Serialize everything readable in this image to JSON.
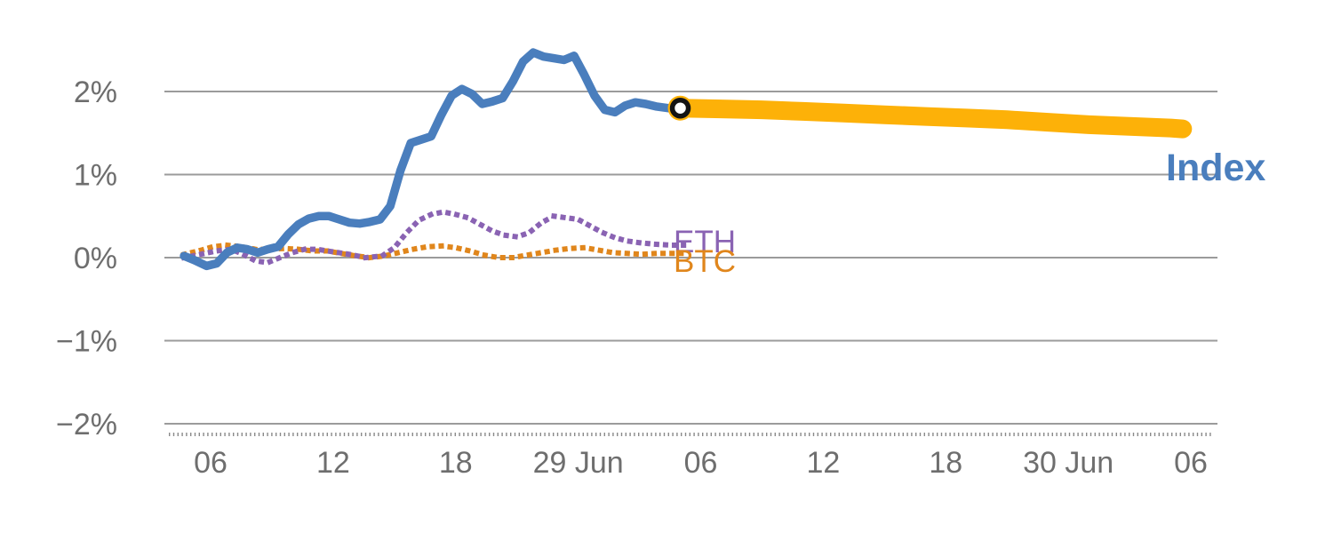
{
  "labels": {
    "index": "Index",
    "eth": "ETH",
    "btc": "BTC"
  },
  "colors": {
    "index": "#4a7ebd",
    "forecast": "#fdb108",
    "eth": "#8a63b3",
    "btc": "#e0861c",
    "axis_text": "#6e6e6e",
    "grid": "#9b9b9b",
    "minor_axis": "#8a8a8a",
    "marker_stroke": "#141414",
    "marker_fill": "#ffffff"
  },
  "chart_data": {
    "type": "line",
    "title": "",
    "xlabel": "",
    "ylabel": "",
    "grid": true,
    "legend_position": "inline-right",
    "ylim": [
      -2,
      2
    ],
    "xlim_hours": [
      3.8,
      55.2
    ],
    "y_ticks": [
      {
        "value": 2,
        "label": "2%"
      },
      {
        "value": 1,
        "label": "1%"
      },
      {
        "value": 0,
        "label": "0%"
      },
      {
        "value": -1,
        "label": "−1%"
      },
      {
        "value": -2,
        "label": "−2%"
      }
    ],
    "x_ticks": [
      {
        "t": 6,
        "label": "06"
      },
      {
        "t": 12,
        "label": "12"
      },
      {
        "t": 18,
        "label": "18"
      },
      {
        "t": 24,
        "label": "29 Jun"
      },
      {
        "t": 30,
        "label": "06"
      },
      {
        "t": 36,
        "label": "12"
      },
      {
        "t": 42,
        "label": "18"
      },
      {
        "t": 48,
        "label": "30 Jun"
      },
      {
        "t": 54,
        "label": "06"
      }
    ],
    "series": [
      {
        "name": "Index",
        "color": "#4a7ebd",
        "style": "solid",
        "width": 9.5,
        "points": [
          [
            4.7,
            0.02
          ],
          [
            5.2,
            -0.03
          ],
          [
            5.8,
            -0.1
          ],
          [
            6.3,
            -0.07
          ],
          [
            6.8,
            0.06
          ],
          [
            7.3,
            0.12
          ],
          [
            7.8,
            0.1
          ],
          [
            8.3,
            0.06
          ],
          [
            8.8,
            0.1
          ],
          [
            9.3,
            0.13
          ],
          [
            9.8,
            0.28
          ],
          [
            10.3,
            0.4
          ],
          [
            10.8,
            0.47
          ],
          [
            11.3,
            0.5
          ],
          [
            11.8,
            0.5
          ],
          [
            12.3,
            0.46
          ],
          [
            12.8,
            0.42
          ],
          [
            13.3,
            0.41
          ],
          [
            13.8,
            0.43
          ],
          [
            14.3,
            0.46
          ],
          [
            14.8,
            0.62
          ],
          [
            15.3,
            1.05
          ],
          [
            15.8,
            1.38
          ],
          [
            16.3,
            1.42
          ],
          [
            16.8,
            1.46
          ],
          [
            17.3,
            1.72
          ],
          [
            17.8,
            1.95
          ],
          [
            18.3,
            2.03
          ],
          [
            18.8,
            1.97
          ],
          [
            19.3,
            1.85
          ],
          [
            19.8,
            1.88
          ],
          [
            20.3,
            1.92
          ],
          [
            20.8,
            2.12
          ],
          [
            21.3,
            2.36
          ],
          [
            21.8,
            2.47
          ],
          [
            22.3,
            2.42
          ],
          [
            22.8,
            2.4
          ],
          [
            23.3,
            2.38
          ],
          [
            23.8,
            2.43
          ],
          [
            24.3,
            2.2
          ],
          [
            24.8,
            1.95
          ],
          [
            25.3,
            1.78
          ],
          [
            25.8,
            1.75
          ],
          [
            26.3,
            1.83
          ],
          [
            26.8,
            1.87
          ],
          [
            27.3,
            1.85
          ],
          [
            27.8,
            1.82
          ],
          [
            28.4,
            1.8
          ],
          [
            29,
            1.8
          ]
        ]
      },
      {
        "name": "Index forecast",
        "color": "#fdb108",
        "style": "solid",
        "width": 21,
        "points": [
          [
            29,
            1.8
          ],
          [
            31,
            1.79
          ],
          [
            33,
            1.78
          ],
          [
            35,
            1.76
          ],
          [
            37,
            1.74
          ],
          [
            39,
            1.72
          ],
          [
            41,
            1.7
          ],
          [
            43,
            1.68
          ],
          [
            45,
            1.66
          ],
          [
            47,
            1.63
          ],
          [
            49,
            1.6
          ],
          [
            51,
            1.58
          ],
          [
            53,
            1.56
          ],
          [
            53.6,
            1.55
          ]
        ]
      },
      {
        "name": "ETH",
        "color": "#8a63b3",
        "style": "dotted",
        "width": 6,
        "points": [
          [
            4.7,
            0.0
          ],
          [
            5.5,
            0.04
          ],
          [
            6.3,
            0.08
          ],
          [
            7,
            0.1
          ],
          [
            7.6,
            0.04
          ],
          [
            8.2,
            -0.04
          ],
          [
            8.8,
            -0.06
          ],
          [
            9.4,
            0.0
          ],
          [
            10,
            0.06
          ],
          [
            10.6,
            0.1
          ],
          [
            11.2,
            0.1
          ],
          [
            12,
            0.07
          ],
          [
            12.8,
            0.04
          ],
          [
            13.6,
            0.0
          ],
          [
            14.4,
            0.02
          ],
          [
            15,
            0.12
          ],
          [
            15.6,
            0.3
          ],
          [
            16.2,
            0.45
          ],
          [
            16.8,
            0.52
          ],
          [
            17.4,
            0.55
          ],
          [
            18,
            0.52
          ],
          [
            18.6,
            0.48
          ],
          [
            19.2,
            0.4
          ],
          [
            19.8,
            0.32
          ],
          [
            20.4,
            0.27
          ],
          [
            21,
            0.25
          ],
          [
            21.6,
            0.3
          ],
          [
            22.2,
            0.42
          ],
          [
            22.8,
            0.5
          ],
          [
            23.4,
            0.48
          ],
          [
            24,
            0.46
          ],
          [
            24.6,
            0.38
          ],
          [
            25.2,
            0.3
          ],
          [
            25.8,
            0.24
          ],
          [
            26.4,
            0.2
          ],
          [
            27,
            0.18
          ],
          [
            27.8,
            0.16
          ],
          [
            28.6,
            0.15
          ],
          [
            29.2,
            0.15
          ]
        ]
      },
      {
        "name": "BTC",
        "color": "#e0861c",
        "style": "dotted",
        "width": 6,
        "points": [
          [
            4.7,
            0.04
          ],
          [
            5.4,
            0.08
          ],
          [
            6.1,
            0.13
          ],
          [
            6.8,
            0.15
          ],
          [
            7.5,
            0.13
          ],
          [
            8.2,
            0.1
          ],
          [
            8.9,
            0.1
          ],
          [
            9.6,
            0.11
          ],
          [
            10.3,
            0.1
          ],
          [
            11,
            0.08
          ],
          [
            11.7,
            0.08
          ],
          [
            12.4,
            0.05
          ],
          [
            13.1,
            0.02
          ],
          [
            13.8,
            0.0
          ],
          [
            14.5,
            0.02
          ],
          [
            15.2,
            0.06
          ],
          [
            15.9,
            0.1
          ],
          [
            16.6,
            0.13
          ],
          [
            17.3,
            0.14
          ],
          [
            18,
            0.12
          ],
          [
            18.7,
            0.08
          ],
          [
            19.4,
            0.03
          ],
          [
            20.1,
            0.0
          ],
          [
            20.8,
            0.0
          ],
          [
            21.5,
            0.03
          ],
          [
            22.2,
            0.06
          ],
          [
            22.9,
            0.09
          ],
          [
            23.6,
            0.11
          ],
          [
            24.3,
            0.12
          ],
          [
            25,
            0.09
          ],
          [
            25.7,
            0.06
          ],
          [
            26.4,
            0.05
          ],
          [
            27.1,
            0.04
          ],
          [
            27.8,
            0.05
          ],
          [
            28.5,
            0.05
          ],
          [
            29.2,
            0.05
          ]
        ]
      }
    ],
    "marker": {
      "t": 29,
      "v": 1.8
    }
  }
}
